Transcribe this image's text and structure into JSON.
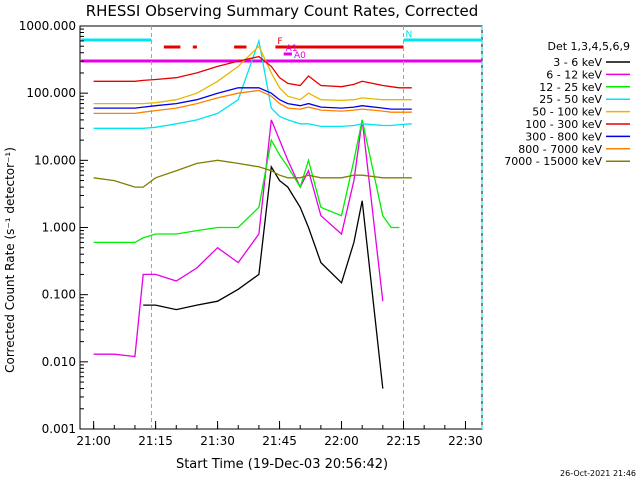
{
  "chart_data": {
    "type": "line",
    "title": "RHESSI Observing Summary Count Rates, Corrected",
    "ylabel": "Corrected Count Rate (s⁻¹ detector⁻¹)",
    "xlabel": "Start Time (19-Dec-03 20:56:42)",
    "y_scale": "log",
    "ylim": [
      0.001,
      1000
    ],
    "xlim": [
      "20:56:42",
      "22:34:00"
    ],
    "x_ticks": [
      "21:00",
      "21:15",
      "21:30",
      "21:45",
      "22:00",
      "22:15",
      "22:30"
    ],
    "y_ticks": [
      "1000.000",
      "100.000",
      "10.000",
      "1.000",
      "0.100",
      "0.010",
      "0.001"
    ],
    "footer_date": "26-Oct-2021 21:46",
    "grid": false,
    "legend": {
      "placement": "right",
      "title": "Det 1,3,4,5,6,9",
      "entries": [
        {
          "label": "3 - 6 keV",
          "color": "#000000"
        },
        {
          "label": "6 - 12 keV",
          "color": "#e600e6"
        },
        {
          "label": "12 - 25 keV",
          "color": "#00ee00"
        },
        {
          "label": "25 - 50 keV",
          "color": "#00e5ee"
        },
        {
          "label": "50 - 100 keV",
          "color": "#e6b800"
        },
        {
          "label": "100 - 300 keV",
          "color": "#e60000"
        },
        {
          "label": "300 - 800 keV",
          "color": "#0000e6"
        },
        {
          "label": "800 - 7000 keV",
          "color": "#ff8000"
        },
        {
          "label": "7000 - 15000 keV",
          "color": "#808000"
        }
      ]
    },
    "flags": [
      {
        "label": "N",
        "color": "#00e5ee",
        "intervals": [
          [
            "20:57",
            "21:14"
          ],
          [
            "22:15",
            "22:34"
          ]
        ]
      },
      {
        "label": "F",
        "color": "#e60000",
        "intervals": [
          [
            "21:17",
            "21:21"
          ],
          [
            "21:24",
            "21:25"
          ],
          [
            "21:34",
            "21:37"
          ],
          [
            "21:44",
            "22:15"
          ]
        ]
      },
      {
        "label": "A1",
        "color": "#e600e6",
        "intervals": [
          [
            "21:46",
            "21:48"
          ]
        ]
      },
      {
        "label": "A0",
        "color": "#e600e6",
        "intervals": [
          [
            "20:57",
            "22:34"
          ],
          [
            "21:48",
            "21:53"
          ]
        ]
      }
    ],
    "x_minutes_from_start": [
      3.3,
      8.3,
      13.3,
      15.3,
      18.3,
      23.3,
      28.3,
      33.3,
      38.3,
      43.3,
      46.3,
      48.3,
      50.3,
      53.3,
      55.3,
      58.3,
      63.3,
      66.3,
      68.3,
      73.3,
      75.3,
      77.3,
      80.3,
      83.3,
      88.3,
      93.3
    ],
    "series": [
      {
        "name": "3 - 6 keV",
        "color": "#000000",
        "values": [
          null,
          null,
          null,
          0.07,
          0.07,
          0.06,
          0.07,
          0.08,
          0.12,
          0.2,
          8.0,
          5.0,
          4.0,
          2.0,
          1.0,
          0.3,
          0.15,
          0.6,
          2.5,
          0.004,
          null,
          null,
          null,
          null,
          null,
          null
        ]
      },
      {
        "name": "6 - 12 keV",
        "color": "#e600e6",
        "values": [
          0.013,
          0.013,
          0.012,
          0.2,
          0.2,
          0.16,
          0.25,
          0.5,
          0.3,
          0.8,
          40.0,
          20.0,
          10.0,
          4.0,
          7.0,
          1.5,
          0.8,
          5.0,
          40.0,
          0.08,
          null,
          null,
          null,
          null,
          null,
          null
        ]
      },
      {
        "name": "12 - 25 keV",
        "color": "#00ee00",
        "values": [
          0.6,
          0.6,
          0.6,
          0.7,
          0.8,
          0.8,
          0.9,
          1.0,
          1.0,
          2.0,
          20.0,
          12.0,
          8.0,
          4.0,
          10.0,
          2.0,
          1.5,
          10.0,
          40.0,
          1.5,
          1.0,
          1.0,
          null,
          null,
          null,
          null
        ]
      },
      {
        "name": "25 - 50 keV",
        "color": "#00e5ee",
        "values": [
          30,
          30,
          30,
          30,
          31,
          35,
          40,
          50,
          80,
          600,
          60,
          45,
          40,
          35,
          35,
          32,
          32,
          33,
          35,
          33,
          33,
          34,
          35,
          null,
          null,
          null
        ]
      },
      {
        "name": "50 - 100 keV",
        "color": "#e6b800",
        "values": [
          70,
          70,
          70,
          70,
          72,
          80,
          100,
          150,
          250,
          500,
          200,
          120,
          90,
          80,
          100,
          80,
          78,
          80,
          85,
          80,
          80,
          80,
          80,
          null,
          null,
          null
        ]
      },
      {
        "name": "100 - 300 keV",
        "color": "#e60000",
        "values": [
          150,
          150,
          150,
          155,
          160,
          170,
          200,
          250,
          300,
          350,
          250,
          170,
          140,
          130,
          180,
          130,
          125,
          135,
          150,
          130,
          125,
          120,
          120,
          null,
          null,
          null
        ]
      },
      {
        "name": "300 - 800 keV",
        "color": "#0000e6",
        "values": [
          60,
          60,
          60,
          62,
          65,
          70,
          80,
          100,
          120,
          120,
          100,
          80,
          70,
          65,
          70,
          62,
          60,
          62,
          65,
          60,
          58,
          58,
          58,
          null,
          null,
          null
        ]
      },
      {
        "name": "800 - 7000 keV",
        "color": "#ff8000",
        "values": [
          50,
          50,
          50,
          52,
          55,
          60,
          70,
          85,
          100,
          110,
          90,
          70,
          60,
          58,
          62,
          56,
          54,
          56,
          58,
          54,
          52,
          52,
          52,
          null,
          null,
          null
        ]
      },
      {
        "name": "7000 - 15000 keV",
        "color": "#808000",
        "values": [
          5.5,
          5.0,
          4.0,
          4.0,
          5.5,
          7.0,
          9.0,
          10.0,
          9.0,
          8.0,
          7.0,
          6.0,
          5.5,
          5.5,
          6.0,
          5.5,
          5.5,
          6.0,
          6.0,
          5.5,
          5.5,
          5.5,
          5.5,
          null,
          null,
          null
        ]
      }
    ]
  }
}
